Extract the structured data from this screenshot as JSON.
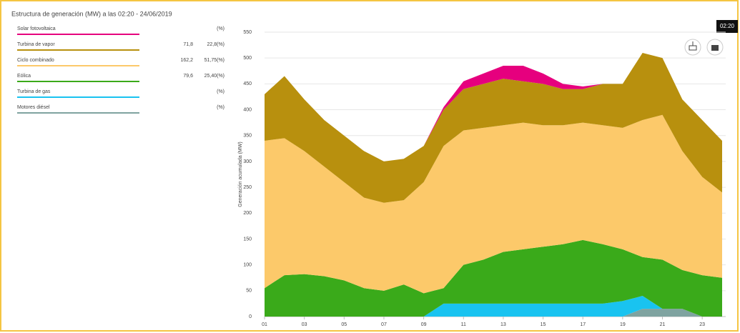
{
  "chart_data": {
    "type": "stacked_area",
    "title": "Estructura de generación (MW) a las 02:20 - 24/06/2019",
    "time_badge": "02:20",
    "y_label": "Generación acumulada (MW)",
    "categories": [
      "01",
      null,
      "03",
      null,
      "05",
      null,
      "07",
      null,
      "09",
      null,
      "11",
      null,
      "13",
      null,
      "15",
      null,
      "17",
      null,
      "19",
      null,
      "21",
      null,
      "23",
      null
    ],
    "ylim": [
      0,
      550
    ],
    "yticks": [
      0,
      50,
      100,
      150,
      200,
      250,
      300,
      350,
      400,
      450,
      500,
      550
    ],
    "grid": true,
    "series": [
      {
        "name": "Solar fotovoltaica",
        "color": "#e6007e",
        "share": "(%)",
        "values": [
          0,
          0,
          0,
          0,
          0,
          0,
          0,
          0,
          0,
          5,
          15,
          20,
          25,
          30,
          20,
          10,
          5,
          0,
          0,
          0,
          0,
          0,
          0,
          0
        ]
      },
      {
        "name": "Turbina de vapor",
        "color": "#b8900e",
        "current": "71,8",
        "share": "22,8(%)",
        "values": [
          90,
          120,
          100,
          90,
          90,
          90,
          80,
          80,
          70,
          70,
          80,
          85,
          90,
          80,
          80,
          70,
          65,
          80,
          85,
          130,
          110,
          100,
          110,
          100
        ]
      },
      {
        "name": "Ciclo combinado",
        "color": "#fcc96a",
        "current": "162,2",
        "share": "51,75(%)",
        "values": [
          285,
          265,
          238,
          212,
          190,
          175,
          170,
          163,
          215,
          275,
          260,
          255,
          245,
          245,
          235,
          230,
          227,
          230,
          235,
          265,
          280,
          230,
          190,
          165
        ]
      },
      {
        "name": "Eólica",
        "color": "#3aaa1a",
        "current": "79,6",
        "share": "25,40(%)",
        "values": [
          55,
          80,
          82,
          78,
          70,
          55,
          50,
          62,
          45,
          30,
          75,
          85,
          100,
          105,
          110,
          115,
          123,
          115,
          100,
          75,
          95,
          75,
          80,
          75
        ]
      },
      {
        "name": "Turbina de gas",
        "color": "#19c3f0",
        "share": "(%)",
        "values": [
          0,
          0,
          0,
          0,
          0,
          0,
          0,
          0,
          0,
          25,
          25,
          25,
          25,
          25,
          25,
          25,
          25,
          25,
          30,
          25,
          0,
          0,
          0,
          0
        ]
      },
      {
        "name": "Motores diésel",
        "color": "#7fa3a0",
        "share": "(%)",
        "values": [
          0,
          0,
          0,
          0,
          0,
          0,
          0,
          0,
          0,
          0,
          0,
          0,
          0,
          0,
          0,
          0,
          0,
          0,
          0,
          15,
          15,
          15,
          0,
          0
        ]
      }
    ]
  }
}
